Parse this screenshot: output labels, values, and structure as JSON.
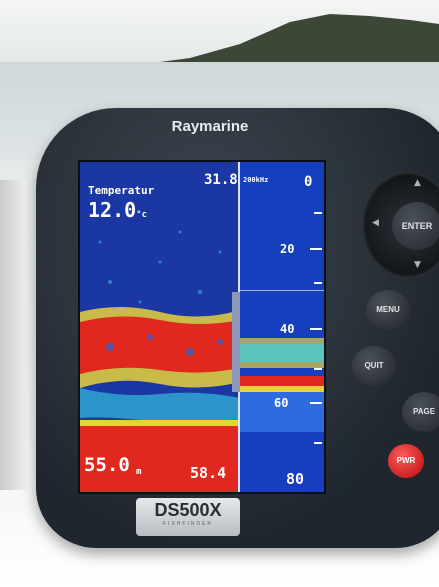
{
  "brand": "Raymarine",
  "screen": {
    "temperature_label": "Temperatur",
    "temperature_value": "12.0",
    "temperature_unit": "°c",
    "top_depth": "31.8",
    "frequency": "200kHz",
    "scale_zero": "0",
    "scale_ticks": [
      "20",
      "40",
      "60"
    ],
    "scale_max": "80",
    "depth_main": "55.0",
    "depth_unit": "m",
    "depth_right": "58.4"
  },
  "buttons": {
    "enter": "ENTER",
    "menu": "MENU",
    "quit": "QUIT",
    "page": "PAGE",
    "power": "PWR"
  },
  "model": {
    "name": "DS500X",
    "sub": "FISHFINDER"
  },
  "colors": {
    "screen_bg": "#1a2a8a",
    "echo_red": "#e0281e",
    "echo_yellow": "#e8d23a",
    "echo_cyan": "#3ad1e6",
    "power_button": "#d01818"
  }
}
